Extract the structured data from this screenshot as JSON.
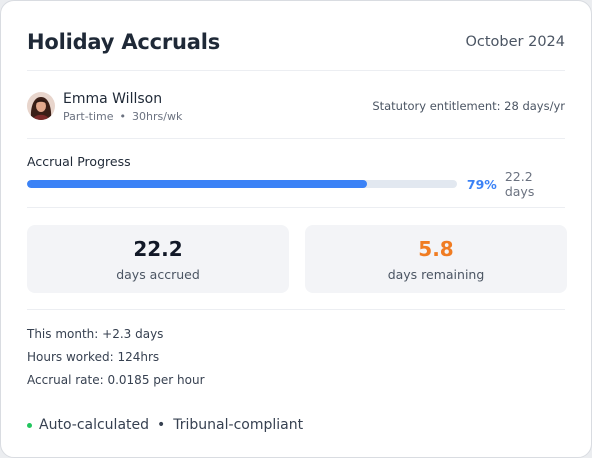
{
  "header": {
    "title": "Holiday Accruals",
    "period": "October 2024"
  },
  "employee": {
    "name": "Emma Willson",
    "contract": "Part-time",
    "separator": "•",
    "hours": "30hrs/wk",
    "entitlement": "Statutory entitlement: 28 days/yr",
    "avatar_icon": "user-avatar"
  },
  "progress": {
    "label": "Accrual Progress",
    "fraction": 0.79,
    "percent_label": "79%",
    "days_label": "22.2 days",
    "color": "#3b82f6"
  },
  "stats": {
    "accrued": {
      "value": "22.2",
      "label": "days accrued",
      "color": "#111827"
    },
    "remaining": {
      "value": "5.8",
      "label": "days remaining",
      "color": "#f07c22"
    }
  },
  "details": {
    "this_month": "This month:  +2.3 days",
    "hours_worked": "Hours worked: 124hrs",
    "accrual_rate": "Accrual rate: 0.0185 per hour"
  },
  "footer": {
    "status_dot_color": "#22c55e",
    "auto": "Auto-calculated",
    "separator": "•",
    "compliance": "Tribunal-compliant"
  }
}
